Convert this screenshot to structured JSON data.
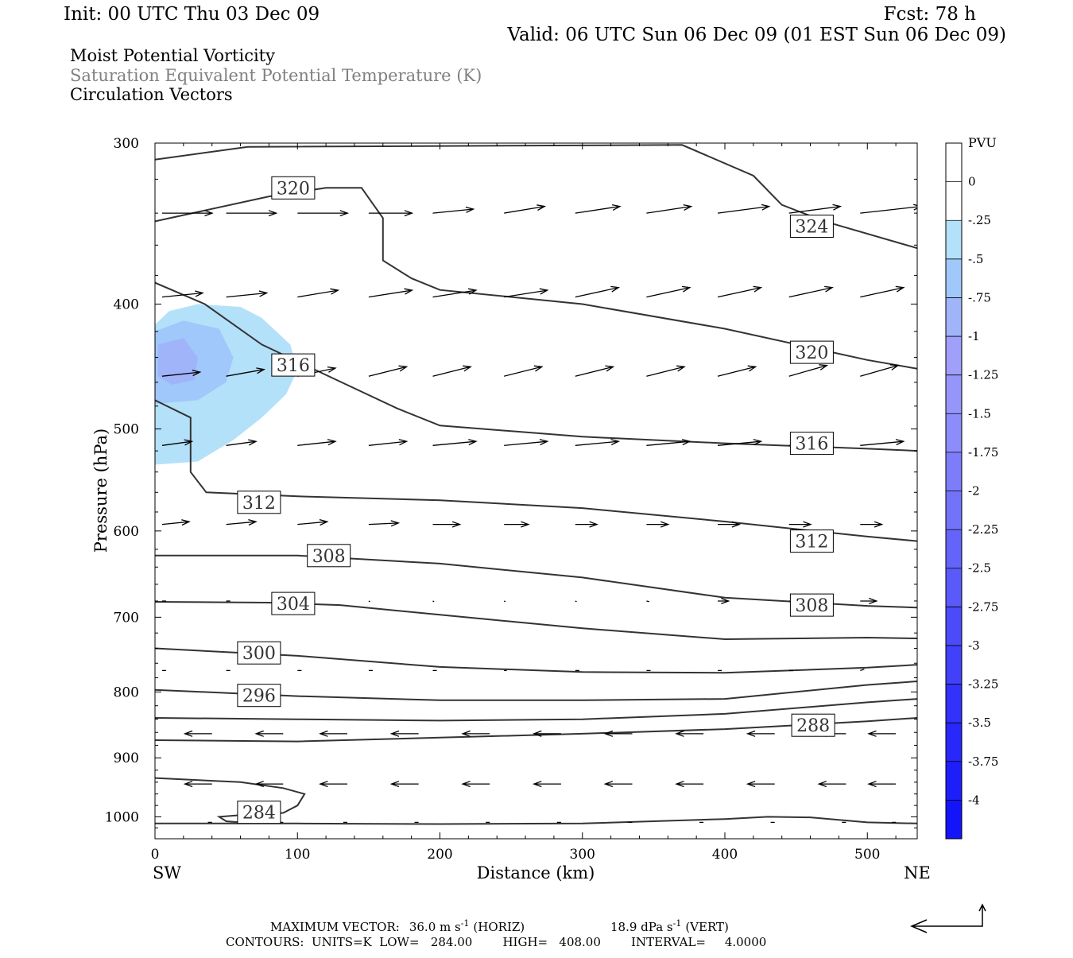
{
  "header": {
    "init": "Init: 00 UTC Thu 03 Dec 09",
    "fcst": "Fcst:   78 h",
    "valid": "Valid: 06 UTC Sun 06 Dec 09 (01 EST Sun 06 Dec 09)",
    "fields": [
      {
        "text": "Moist Potential Vorticity",
        "color": "#000000"
      },
      {
        "text": "Saturation Equivalent Potential Temperature (K)",
        "color": "#808080"
      },
      {
        "text": "Circulation Vectors",
        "color": "#000000"
      }
    ]
  },
  "footer": {
    "max_vector_label": "MAXIMUM VECTOR:",
    "horiz_value": "36.0 m s",
    "horiz_unit": "(HORIZ)",
    "vert_value": "18.9 dPa s",
    "vert_unit": "(VERT)",
    "exponent": "-1",
    "contours": "CONTOURS:  UNITS=K  LOW=   284.00        HIGH=   408.00        INTERVAL=     4.0000"
  },
  "chart_data": {
    "type": "contour",
    "xlabel": "Distance (km)",
    "ylabel": "Pressure (hPa)",
    "xlim": [
      0,
      535
    ],
    "ylim": [
      1040,
      300
    ],
    "y_scale": "log",
    "x_ticks": [
      0,
      100,
      200,
      300,
      400,
      500
    ],
    "y_ticks": [
      300,
      400,
      500,
      600,
      700,
      800,
      900,
      1000
    ],
    "x_end_labels": {
      "left": "SW",
      "right": "NE"
    },
    "contour_color": "#333333",
    "contour_series": [
      {
        "name": "284",
        "points": [
          [
            0,
            1012
          ],
          [
            100,
            1012
          ],
          [
            200,
            1013
          ],
          [
            300,
            1012
          ],
          [
            400,
            1004
          ],
          [
            430,
            1000
          ],
          [
            460,
            1001
          ],
          [
            500,
            1010
          ],
          [
            535,
            1012
          ]
        ],
        "labels": [
          [
            73,
            992
          ]
        ]
      },
      {
        "name": "284",
        "points": [
          [
            0,
            933
          ],
          [
            60,
            940
          ],
          [
            90,
            950
          ],
          [
            105,
            960
          ],
          [
            100,
            980
          ],
          [
            90,
            993
          ],
          [
            60,
            997
          ],
          [
            45,
            1000
          ],
          [
            50,
            1008
          ],
          [
            60,
            1010
          ]
        ],
        "labels": []
      },
      {
        "name": "288",
        "points": [
          [
            0,
            872
          ],
          [
            100,
            874
          ],
          [
            200,
            868
          ],
          [
            300,
            862
          ],
          [
            400,
            855
          ],
          [
            450,
            849
          ],
          [
            500,
            843
          ],
          [
            535,
            838
          ]
        ],
        "labels": [
          [
            462,
            849
          ]
        ]
      },
      {
        "name": "292",
        "points": [
          [
            0,
            838
          ],
          [
            100,
            840
          ],
          [
            200,
            842
          ],
          [
            300,
            840
          ],
          [
            400,
            832
          ],
          [
            500,
            815
          ],
          [
            535,
            810
          ]
        ],
        "labels": []
      },
      {
        "name": "296",
        "points": [
          [
            0,
            797
          ],
          [
            100,
            806
          ],
          [
            200,
            812
          ],
          [
            300,
            812
          ],
          [
            400,
            810
          ],
          [
            500,
            790
          ],
          [
            535,
            785
          ]
        ],
        "labels": [
          [
            73,
            805
          ]
        ]
      },
      {
        "name": "300",
        "points": [
          [
            0,
            740
          ],
          [
            100,
            750
          ],
          [
            200,
            765
          ],
          [
            300,
            772
          ],
          [
            400,
            773
          ],
          [
            500,
            766
          ],
          [
            535,
            762
          ]
        ],
        "labels": [
          [
            73,
            746
          ]
        ]
      },
      {
        "name": "304",
        "points": [
          [
            0,
            681
          ],
          [
            80,
            682
          ],
          [
            130,
            685
          ],
          [
            200,
            697
          ],
          [
            300,
            714
          ],
          [
            400,
            728
          ],
          [
            500,
            726
          ],
          [
            535,
            727
          ]
        ],
        "labels": [
          [
            97,
            683
          ]
        ]
      },
      {
        "name": "308",
        "points": [
          [
            0,
            627
          ],
          [
            100,
            627
          ],
          [
            200,
            636
          ],
          [
            300,
            652
          ],
          [
            400,
            676
          ],
          [
            500,
            686
          ],
          [
            535,
            688
          ]
        ],
        "labels": [
          [
            122,
            627
          ],
          [
            461,
            685
          ]
        ]
      },
      {
        "name": "312",
        "points": [
          [
            0,
            475
          ],
          [
            25,
            490
          ],
          [
            25,
            540
          ],
          [
            36,
            560
          ],
          [
            100,
            564
          ],
          [
            200,
            568
          ],
          [
            300,
            576
          ],
          [
            400,
            590
          ],
          [
            500,
            606
          ],
          [
            535,
            611
          ]
        ],
        "labels": [
          [
            73,
            570
          ],
          [
            461,
            611
          ]
        ]
      },
      {
        "name": "316",
        "points": [
          [
            0,
            385
          ],
          [
            35,
            400
          ],
          [
            75,
            430
          ],
          [
            120,
            454
          ],
          [
            170,
            482
          ],
          [
            200,
            497
          ],
          [
            300,
            507
          ],
          [
            400,
            513
          ],
          [
            500,
            518
          ],
          [
            535,
            520
          ]
        ],
        "labels": [
          [
            97,
            446
          ],
          [
            461,
            513
          ]
        ]
      },
      {
        "name": "320",
        "points": [
          [
            0,
            345
          ],
          [
            80,
            330
          ],
          [
            120,
            325
          ],
          [
            145,
            325
          ],
          [
            160,
            343
          ],
          [
            160,
            370
          ],
          [
            180,
            382
          ],
          [
            200,
            390
          ],
          [
            300,
            400
          ],
          [
            400,
            418
          ],
          [
            500,
            442
          ],
          [
            535,
            449
          ]
        ],
        "labels": [
          [
            97,
            325
          ],
          [
            461,
            436
          ]
        ]
      },
      {
        "name": "324",
        "points": [
          [
            0,
            309
          ],
          [
            65,
            302
          ],
          [
            370,
            301
          ],
          [
            420,
            318
          ],
          [
            440,
            335
          ],
          [
            470,
            345
          ],
          [
            535,
            362
          ]
        ],
        "labels": [
          [
            461,
            348
          ]
        ]
      }
    ],
    "shading": {
      "field": "Moist Potential Vorticity",
      "unit": "PVU",
      "levels": [
        {
          "range": [
            -0.5,
            -0.25
          ],
          "color": "#b4e1fa"
        },
        {
          "range": [
            -0.75,
            -0.5
          ],
          "color": "#a0c8fa"
        },
        {
          "range": [
            -1,
            -0.75
          ],
          "color": "#a0b4fa"
        }
      ],
      "regions": [
        {
          "level": 0,
          "points": [
            [
              0,
              415
            ],
            [
              10,
              405
            ],
            [
              30,
              400
            ],
            [
              60,
              402
            ],
            [
              75,
              410
            ],
            [
              95,
              430
            ],
            [
              100,
              450
            ],
            [
              92,
              470
            ],
            [
              75,
              490
            ],
            [
              55,
              510
            ],
            [
              30,
              530
            ],
            [
              0,
              533
            ]
          ]
        },
        {
          "level": 1,
          "points": [
            [
              0,
              420
            ],
            [
              20,
              412
            ],
            [
              45,
              418
            ],
            [
              55,
              440
            ],
            [
              50,
              460
            ],
            [
              30,
              475
            ],
            [
              0,
              478
            ]
          ]
        },
        {
          "level": 2,
          "points": [
            [
              2,
              430
            ],
            [
              20,
              425
            ],
            [
              30,
              440
            ],
            [
              28,
              458
            ],
            [
              12,
              462
            ],
            [
              2,
              455
            ]
          ]
        }
      ]
    },
    "colorbar": {
      "title": "PVU",
      "labels": [
        "0",
        "-.25",
        "-.5",
        "-.75",
        "-1",
        "-1.25",
        "-1.5",
        "-1.75",
        "-2",
        "-2.25",
        "-2.5",
        "-2.75",
        "-3",
        "-3.25",
        "-3.5",
        "-3.75",
        "-4"
      ],
      "colors": [
        "#ffffff",
        "#ffffff",
        "#b4e1fa",
        "#a0c8fa",
        "#a0b4fa",
        "#a0a0fa",
        "#9696fa",
        "#8c8cfa",
        "#7d7dfa",
        "#7373fa",
        "#6464fa",
        "#5a5afa",
        "#4b4bfa",
        "#4141fa",
        "#3232fa",
        "#2828fa",
        "#1e1efa",
        "#1414fa"
      ]
    },
    "vector_rows": [
      {
        "p": 340,
        "x": [
          5,
          50,
          100,
          150,
          195,
          245,
          295,
          345,
          395,
          445,
          495
        ],
        "u": [
          37,
          37,
          37,
          32,
          30,
          30,
          33,
          33,
          38,
          38,
          45
        ],
        "v": [
          0,
          0,
          0,
          0,
          3,
          5,
          5,
          5,
          5,
          5,
          5
        ]
      },
      {
        "p": 395,
        "x": [
          5,
          50,
          100,
          150,
          195,
          245,
          295,
          345,
          395,
          445,
          495
        ],
        "u": [
          30,
          30,
          30,
          32,
          32,
          32,
          32,
          32,
          32,
          32,
          32
        ],
        "v": [
          3,
          3,
          5,
          5,
          5,
          5,
          7,
          7,
          7,
          7,
          7
        ]
      },
      {
        "p": 455,
        "x": [
          5,
          50,
          100,
          150,
          195,
          245,
          295,
          345,
          395,
          445,
          495
        ],
        "u": [
          28,
          28,
          28,
          28,
          28,
          28,
          28,
          28,
          28,
          28,
          28
        ],
        "v": [
          3,
          5,
          6,
          7,
          7,
          7,
          7,
          7,
          7,
          8,
          8
        ]
      },
      {
        "p": 515,
        "x": [
          5,
          50,
          100,
          150,
          195,
          245,
          295,
          345,
          395,
          445,
          495
        ],
        "u": [
          22,
          22,
          28,
          28,
          32,
          32,
          32,
          32,
          32,
          32,
          32
        ],
        "v": [
          3,
          3,
          3,
          3,
          3,
          3,
          3,
          3,
          3,
          3,
          3
        ]
      },
      {
        "p": 593,
        "x": [
          5,
          50,
          100,
          150,
          195,
          245,
          295,
          345,
          395,
          445,
          495
        ],
        "u": [
          20,
          22,
          22,
          22,
          20,
          18,
          16,
          16,
          16,
          16,
          16
        ],
        "v": [
          2,
          2,
          2,
          1,
          0,
          0,
          0,
          0,
          0,
          0,
          0
        ]
      },
      {
        "p": 680,
        "x": [
          5,
          50,
          100,
          150,
          195,
          245,
          295,
          345,
          395,
          445,
          495
        ],
        "u": [
          3,
          3,
          2,
          1,
          1,
          1,
          1,
          2,
          8,
          12,
          12
        ],
        "v": [
          0,
          0,
          0,
          -0.5,
          -0.5,
          -0.5,
          -0.5,
          -0.5,
          0,
          0,
          0
        ]
      },
      {
        "p": 770,
        "x": [
          5,
          50,
          100,
          150,
          195,
          245,
          295,
          345,
          395,
          445,
          495
        ],
        "u": [
          3,
          3,
          3,
          3,
          3,
          2,
          3,
          3,
          3,
          3,
          3
        ],
        "v": [
          0,
          0,
          0,
          0,
          0,
          0,
          0,
          0,
          0,
          0,
          1
        ]
      },
      {
        "p": 862,
        "x": [
          40,
          90,
          135,
          185,
          235,
          285,
          335,
          385,
          435,
          485,
          520
        ],
        "u": [
          -20,
          -20,
          -20,
          -20,
          -20,
          -20,
          -20,
          -20,
          -20,
          -20,
          -20
        ],
        "v": [
          0,
          0,
          0,
          0,
          0,
          0,
          0,
          0,
          0,
          0,
          0
        ]
      },
      {
        "p": 943,
        "x": [
          40,
          90,
          135,
          185,
          235,
          285,
          335,
          385,
          435,
          485,
          520
        ],
        "u": [
          -20,
          -20,
          -20,
          -20,
          -20,
          -20,
          -20,
          -20,
          -20,
          -20,
          -20
        ],
        "v": [
          0,
          0,
          0,
          0,
          0,
          0,
          0,
          0,
          0,
          0,
          0
        ]
      },
      {
        "p": 1010,
        "x": [
          40,
          90,
          135,
          185,
          235,
          285,
          335,
          385,
          435,
          485,
          520
        ],
        "u": [
          -3,
          -3,
          -3,
          -3,
          -3,
          -3,
          -3,
          -3,
          -3,
          -3,
          -3
        ],
        "v": [
          0,
          0,
          0,
          0,
          0,
          0,
          0,
          0,
          0,
          0,
          0
        ]
      }
    ]
  }
}
